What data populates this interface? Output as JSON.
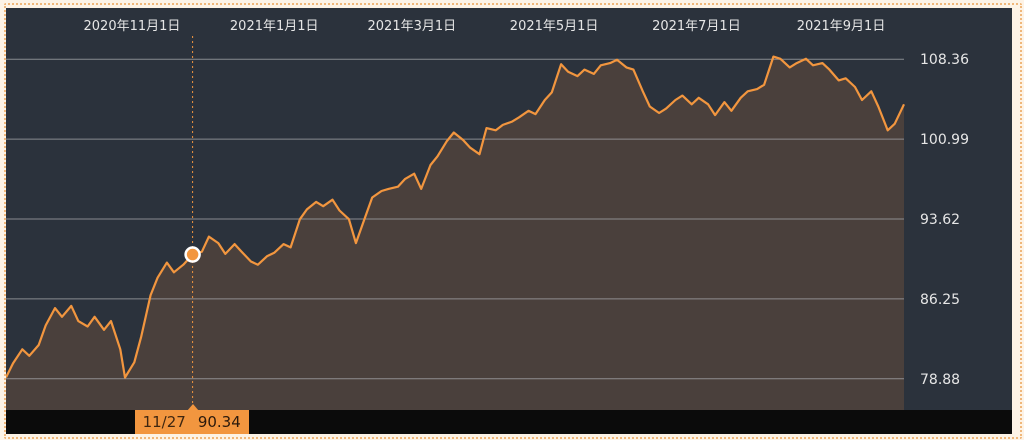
{
  "colors": {
    "background": "#2b323c",
    "line": "#f2963f",
    "area": "#4a403c",
    "grid": "#a7a9ac",
    "text": "#e6e6e6",
    "footer": "#0b0b0b",
    "frame": "#f0b77a"
  },
  "cursor": {
    "date": "11/27",
    "value": "90.34"
  },
  "chart_data": {
    "type": "area",
    "x_tick_labels": [
      "2020年11月1日",
      "2021年1月1日",
      "2021年3月1日",
      "2021年5月1日",
      "2021年7月1日",
      "2021年9月1日"
    ],
    "x_tick_dates": [
      "2020-11-01",
      "2021-01-01",
      "2021-03-01",
      "2021-05-01",
      "2021-07-01",
      "2021-09-01"
    ],
    "y_tick_labels": [
      "108.36",
      "100.99",
      "93.62",
      "86.25",
      "78.88"
    ],
    "y_ticks": [
      108.36,
      100.99,
      93.62,
      86.25,
      78.88
    ],
    "ylim": [
      76.0,
      110.5
    ],
    "xlim": [
      "2020-09-08",
      "2021-09-28"
    ],
    "grid": true,
    "y_axis_position": "right",
    "x_axis_position": "top",
    "cursor_date": "2020-11-27",
    "cursor_value": 90.34,
    "series": [
      {
        "points": [
          [
            "2020-09-08",
            79.0
          ],
          [
            "2020-09-11",
            80.3
          ],
          [
            "2020-09-15",
            81.6
          ],
          [
            "2020-09-18",
            81.0
          ],
          [
            "2020-09-22",
            82.0
          ],
          [
            "2020-09-25",
            83.8
          ],
          [
            "2020-09-29",
            85.4
          ],
          [
            "2020-10-02",
            84.6
          ],
          [
            "2020-10-06",
            85.6
          ],
          [
            "2020-10-09",
            84.2
          ],
          [
            "2020-10-13",
            83.7
          ],
          [
            "2020-10-16",
            84.6
          ],
          [
            "2020-10-20",
            83.4
          ],
          [
            "2020-10-23",
            84.2
          ],
          [
            "2020-10-27",
            81.6
          ],
          [
            "2020-10-29",
            79.0
          ],
          [
            "2020-11-02",
            80.4
          ],
          [
            "2020-11-05",
            82.8
          ],
          [
            "2020-11-09",
            86.6
          ],
          [
            "2020-11-12",
            88.2
          ],
          [
            "2020-11-16",
            89.6
          ],
          [
            "2020-11-19",
            88.7
          ],
          [
            "2020-11-23",
            89.4
          ],
          [
            "2020-11-27",
            90.34
          ],
          [
            "2020-12-01",
            90.6
          ],
          [
            "2020-12-04",
            92.0
          ],
          [
            "2020-12-08",
            91.4
          ],
          [
            "2020-12-11",
            90.4
          ],
          [
            "2020-12-15",
            91.3
          ],
          [
            "2020-12-18",
            90.6
          ],
          [
            "2020-12-22",
            89.7
          ],
          [
            "2020-12-25",
            89.4
          ],
          [
            "2020-12-29",
            90.2
          ],
          [
            "2021-01-01",
            90.5
          ],
          [
            "2021-01-05",
            91.3
          ],
          [
            "2021-01-08",
            91.0
          ],
          [
            "2021-01-12",
            93.6
          ],
          [
            "2021-01-15",
            94.5
          ],
          [
            "2021-01-19",
            95.2
          ],
          [
            "2021-01-22",
            94.8
          ],
          [
            "2021-01-26",
            95.4
          ],
          [
            "2021-01-29",
            94.4
          ],
          [
            "2021-02-02",
            93.6
          ],
          [
            "2021-02-05",
            91.4
          ],
          [
            "2021-02-09",
            93.8
          ],
          [
            "2021-02-12",
            95.6
          ],
          [
            "2021-02-16",
            96.2
          ],
          [
            "2021-02-19",
            96.4
          ],
          [
            "2021-02-23",
            96.6
          ],
          [
            "2021-02-26",
            97.3
          ],
          [
            "2021-03-02",
            97.8
          ],
          [
            "2021-03-05",
            96.4
          ],
          [
            "2021-03-09",
            98.6
          ],
          [
            "2021-03-12",
            99.4
          ],
          [
            "2021-03-16",
            100.8
          ],
          [
            "2021-03-19",
            101.6
          ],
          [
            "2021-03-23",
            100.9
          ],
          [
            "2021-03-26",
            100.2
          ],
          [
            "2021-03-30",
            99.6
          ],
          [
            "2021-04-02",
            102.0
          ],
          [
            "2021-04-06",
            101.8
          ],
          [
            "2021-04-09",
            102.3
          ],
          [
            "2021-04-13",
            102.6
          ],
          [
            "2021-04-16",
            103.0
          ],
          [
            "2021-04-20",
            103.6
          ],
          [
            "2021-04-23",
            103.3
          ],
          [
            "2021-04-27",
            104.6
          ],
          [
            "2021-04-30",
            105.3
          ],
          [
            "2021-05-04",
            107.9
          ],
          [
            "2021-05-07",
            107.2
          ],
          [
            "2021-05-11",
            106.8
          ],
          [
            "2021-05-14",
            107.4
          ],
          [
            "2021-05-18",
            107.0
          ],
          [
            "2021-05-21",
            107.8
          ],
          [
            "2021-05-25",
            108.0
          ],
          [
            "2021-05-28",
            108.3
          ],
          [
            "2021-06-01",
            107.6
          ],
          [
            "2021-06-04",
            107.4
          ],
          [
            "2021-06-08",
            105.4
          ],
          [
            "2021-06-11",
            104.0
          ],
          [
            "2021-06-15",
            103.4
          ],
          [
            "2021-06-18",
            103.8
          ],
          [
            "2021-06-22",
            104.6
          ],
          [
            "2021-06-25",
            105.0
          ],
          [
            "2021-06-29",
            104.2
          ],
          [
            "2021-07-02",
            104.8
          ],
          [
            "2021-07-06",
            104.2
          ],
          [
            "2021-07-09",
            103.2
          ],
          [
            "2021-07-13",
            104.4
          ],
          [
            "2021-07-16",
            103.6
          ],
          [
            "2021-07-20",
            104.8
          ],
          [
            "2021-07-23",
            105.4
          ],
          [
            "2021-07-27",
            105.6
          ],
          [
            "2021-07-30",
            106.0
          ],
          [
            "2021-08-03",
            108.6
          ],
          [
            "2021-08-06",
            108.4
          ],
          [
            "2021-08-10",
            107.6
          ],
          [
            "2021-08-13",
            108.0
          ],
          [
            "2021-08-17",
            108.4
          ],
          [
            "2021-08-20",
            107.8
          ],
          [
            "2021-08-24",
            108.0
          ],
          [
            "2021-08-27",
            107.4
          ],
          [
            "2021-08-31",
            106.4
          ],
          [
            "2021-09-03",
            106.6
          ],
          [
            "2021-09-07",
            105.8
          ],
          [
            "2021-09-10",
            104.6
          ],
          [
            "2021-09-14",
            105.4
          ],
          [
            "2021-09-17",
            104.0
          ],
          [
            "2021-09-21",
            101.8
          ],
          [
            "2021-09-24",
            102.4
          ],
          [
            "2021-09-28",
            104.2
          ]
        ]
      }
    ]
  }
}
